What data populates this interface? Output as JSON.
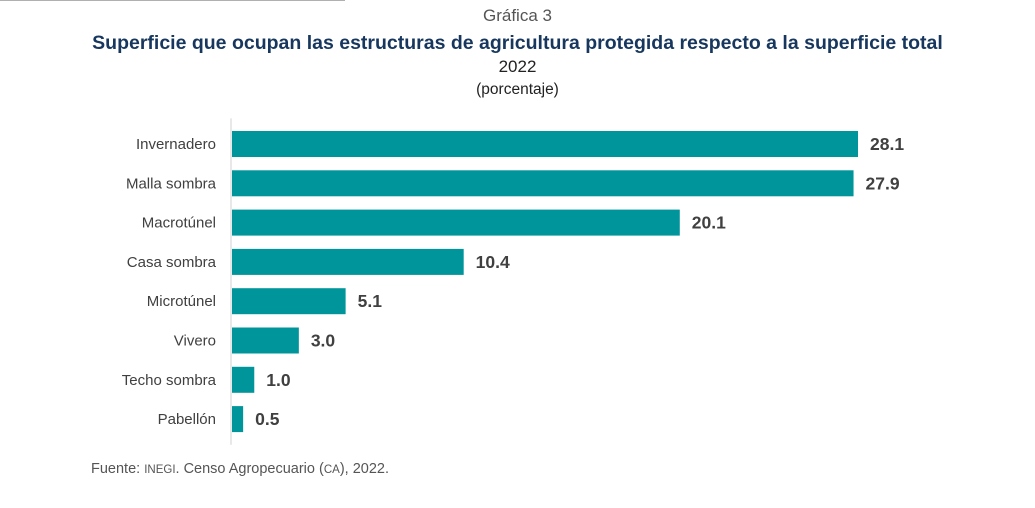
{
  "header": {
    "figure_label": "Gráfica 3",
    "title": "Superficie que ocupan las estructuras de agricultura protegida respecto a la superficie total",
    "year": "2022",
    "unit": "(porcentaje)"
  },
  "chart_data": {
    "type": "bar",
    "orientation": "horizontal",
    "categories": [
      "Invernadero",
      "Malla sombra",
      "Macrotúnel",
      "Casa sombra",
      "Microtúnel",
      "Vivero",
      "Techo sombra",
      "Pabellón"
    ],
    "values": [
      28.1,
      27.9,
      20.1,
      10.4,
      5.1,
      3.0,
      1.0,
      0.5
    ],
    "value_labels": [
      "28.1",
      "27.9",
      "20.1",
      "10.4",
      "5.1",
      "3.0",
      "1.0",
      "0.5"
    ],
    "xlim": [
      0,
      28.1
    ],
    "grid": false,
    "legend": "none",
    "bar_color": "#00959a"
  },
  "source": {
    "prefix": "Fuente: ",
    "org": "INEGI",
    "mid": ". Censo Agropecuario (",
    "abbr": "CA",
    "suffix": "), 2022."
  }
}
